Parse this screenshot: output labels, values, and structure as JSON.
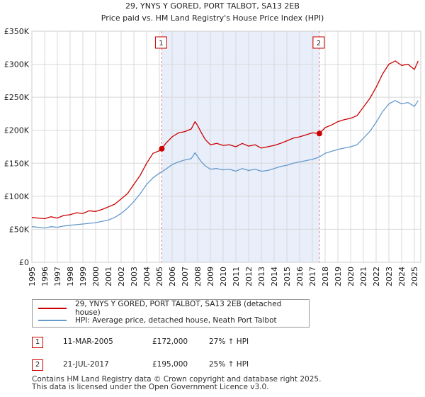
{
  "chart_data": {
    "type": "line",
    "title": "29, YNYS Y GORED, PORT TALBOT, SA13 2EB",
    "subtitle": "Price paid vs. HM Land Registry's House Price Index (HPI)",
    "xlabel": "",
    "ylabel": "",
    "xlim": [
      1995,
      2025.5
    ],
    "ylim": [
      0,
      350000
    ],
    "y_ticks": [
      0,
      50000,
      100000,
      150000,
      200000,
      250000,
      300000,
      350000
    ],
    "y_tick_labels": [
      "£0",
      "£50K",
      "£100K",
      "£150K",
      "£200K",
      "£250K",
      "£300K",
      "£350K"
    ],
    "x_ticks": [
      1995,
      1996,
      1997,
      1998,
      1999,
      2000,
      2001,
      2002,
      2003,
      2004,
      2005,
      2006,
      2007,
      2008,
      2009,
      2010,
      2011,
      2012,
      2013,
      2014,
      2015,
      2016,
      2017,
      2018,
      2019,
      2020,
      2021,
      2022,
      2023,
      2024,
      2025
    ],
    "x_tick_labels": [
      "1995",
      "1996",
      "1997",
      "1998",
      "1999",
      "2000",
      "2001",
      "2002",
      "2003",
      "2004",
      "2005",
      "2006",
      "2007",
      "2008",
      "2009",
      "2010",
      "2011",
      "2012",
      "2013",
      "2014",
      "2015",
      "2016",
      "2017",
      "2018",
      "2019",
      "2020",
      "2021",
      "2022",
      "2023",
      "2024",
      "2025"
    ],
    "grid": true,
    "shaded_region": [
      2005.19,
      2017.55
    ],
    "series": [
      {
        "name": "29, YNYS Y GORED, PORT TALBOT, SA13 2EB (detached house)",
        "color": "#cc0000",
        "x": [
          1995,
          1995.5,
          1996,
          1996.5,
          1997,
          1997.5,
          1998,
          1998.5,
          1999,
          1999.5,
          2000,
          2000.5,
          2001,
          2001.5,
          2002,
          2002.5,
          2003,
          2003.5,
          2004,
          2004.5,
          2005,
          2005.19,
          2005.5,
          2006,
          2006.5,
          2007,
          2007.5,
          2007.8,
          2008,
          2008.3,
          2008.6,
          2009,
          2009.5,
          2010,
          2010.5,
          2011,
          2011.5,
          2012,
          2012.5,
          2013,
          2013.5,
          2014,
          2014.5,
          2015,
          2015.5,
          2016,
          2016.5,
          2017,
          2017.55,
          2018,
          2018.5,
          2019,
          2019.5,
          2020,
          2020.5,
          2021,
          2021.5,
          2022,
          2022.5,
          2023,
          2023.5,
          2024,
          2024.5,
          2025,
          2025.3
        ],
        "y": [
          68000,
          67000,
          66000,
          69000,
          67000,
          71000,
          72000,
          75000,
          74000,
          78000,
          77000,
          80000,
          84000,
          88000,
          96000,
          104000,
          118000,
          132000,
          150000,
          165000,
          169000,
          172000,
          180000,
          190000,
          196000,
          198000,
          202000,
          213000,
          207000,
          196000,
          186000,
          178000,
          180000,
          177000,
          178000,
          175000,
          180000,
          176000,
          178000,
          173000,
          175000,
          177000,
          180000,
          184000,
          188000,
          190000,
          193000,
          196000,
          195000,
          204000,
          208000,
          213000,
          216000,
          218000,
          222000,
          235000,
          248000,
          265000,
          285000,
          300000,
          305000,
          298000,
          300000,
          292000,
          305000
        ]
      },
      {
        "name": "HPI: Average price, detached house, Neath Port Talbot",
        "color": "#6699cc",
        "x": [
          1995,
          1995.5,
          1996,
          1996.5,
          1997,
          1997.5,
          1998,
          1998.5,
          1999,
          1999.5,
          2000,
          2000.5,
          2001,
          2001.5,
          2002,
          2002.5,
          2003,
          2003.5,
          2004,
          2004.5,
          2005,
          2005.5,
          2006,
          2006.5,
          2007,
          2007.5,
          2007.8,
          2008,
          2008.3,
          2008.6,
          2009,
          2009.5,
          2010,
          2010.5,
          2011,
          2011.5,
          2012,
          2012.5,
          2013,
          2013.5,
          2014,
          2014.5,
          2015,
          2015.5,
          2016,
          2016.5,
          2017,
          2017.5,
          2018,
          2018.5,
          2019,
          2019.5,
          2020,
          2020.5,
          2021,
          2021.5,
          2022,
          2022.5,
          2023,
          2023.5,
          2024,
          2024.5,
          2025,
          2025.3
        ],
        "y": [
          54000,
          53000,
          52000,
          54000,
          53000,
          55000,
          56000,
          57000,
          58000,
          59000,
          60000,
          62000,
          64000,
          68000,
          74000,
          82000,
          92000,
          104000,
          118000,
          128000,
          135000,
          141000,
          148000,
          152000,
          155000,
          157000,
          166000,
          160000,
          152000,
          146000,
          141000,
          142000,
          140000,
          141000,
          138000,
          142000,
          139000,
          141000,
          138000,
          139000,
          142000,
          145000,
          147000,
          150000,
          152000,
          154000,
          156000,
          159000,
          165000,
          168000,
          171000,
          173000,
          175000,
          178000,
          188000,
          198000,
          212000,
          228000,
          240000,
          245000,
          240000,
          242000,
          236000,
          245000
        ]
      }
    ],
    "sales": [
      {
        "label": "1",
        "x": 2005.19,
        "y": 172000
      },
      {
        "label": "2",
        "x": 2017.55,
        "y": 195000
      }
    ]
  },
  "legend": {
    "items": [
      {
        "label": "29, YNYS Y GORED, PORT TALBOT, SA13 2EB (detached house)",
        "color": "#cc0000"
      },
      {
        "label": "HPI: Average price, detached house, Neath Port Talbot",
        "color": "#6699cc"
      }
    ]
  },
  "transactions": [
    {
      "num": "1",
      "date": "11-MAR-2005",
      "price": "£172,000",
      "hpi": "27% ↑ HPI"
    },
    {
      "num": "2",
      "date": "21-JUL-2017",
      "price": "£195,000",
      "hpi": "25% ↑ HPI"
    }
  ],
  "footer": {
    "line1": "Contains HM Land Registry data © Crown copyright and database right 2025.",
    "line2": "This data is licensed under the Open Government Licence v3.0."
  }
}
